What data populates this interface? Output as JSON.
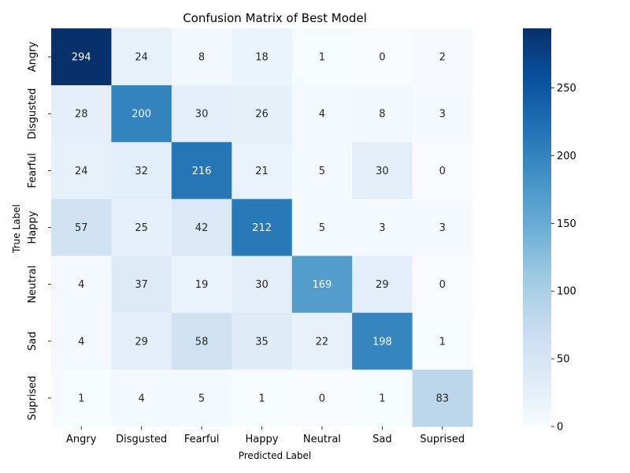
{
  "chart_data": {
    "type": "heatmap",
    "title": "Confusion Matrix of Best Model",
    "xlabel": "Predicted Label",
    "ylabel": "True Label",
    "x_categories": [
      "Angry",
      "Disgusted",
      "Fearful",
      "Happy",
      "Neutral",
      "Sad",
      "Suprised"
    ],
    "y_categories": [
      "Angry",
      "Disgusted",
      "Fearful",
      "Happy",
      "Neutral",
      "Sad",
      "Suprised"
    ],
    "values": [
      [
        294,
        24,
        8,
        18,
        1,
        0,
        2
      ],
      [
        28,
        200,
        30,
        26,
        4,
        8,
        3
      ],
      [
        24,
        32,
        216,
        21,
        5,
        30,
        0
      ],
      [
        57,
        25,
        42,
        212,
        5,
        3,
        3
      ],
      [
        4,
        37,
        19,
        30,
        169,
        29,
        0
      ],
      [
        4,
        29,
        58,
        35,
        22,
        198,
        1
      ],
      [
        1,
        4,
        5,
        1,
        0,
        1,
        83
      ]
    ],
    "colorbar": {
      "range": [
        0,
        294
      ],
      "ticks": [
        0,
        50,
        100,
        150,
        200,
        250
      ]
    },
    "colormap": [
      "#f7fbff",
      "#deebf7",
      "#c6dbef",
      "#9ecae1",
      "#6baed6",
      "#4292c6",
      "#2171b5",
      "#08519c",
      "#08306b"
    ],
    "grid": false,
    "legend": "colorbar-right"
  }
}
